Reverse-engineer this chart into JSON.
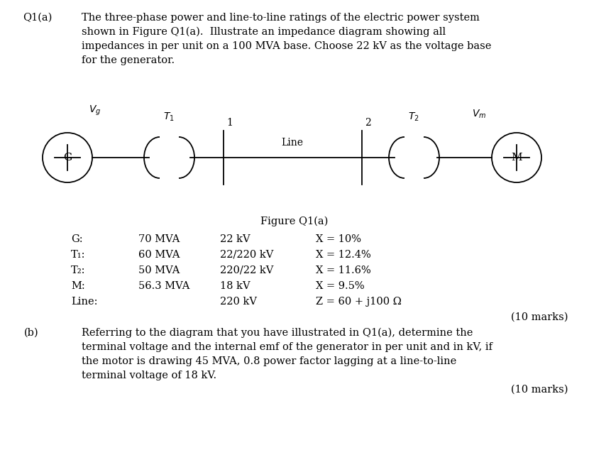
{
  "background_color": "#ffffff",
  "body_fontsize": 10.5,
  "fig_width": 8.3,
  "fig_height": 6.41,
  "q1a_label": "Q1(a)",
  "q1a_text_line1": "The three-phase power and line-to-line ratings of the electric power system",
  "q1a_text_line2": "shown in Figure Q1(a).  Illustrate an impedance diagram showing all",
  "q1a_text_line3": "impedances in per unit on a 100 MVA base. Choose 22 kV as the voltage base",
  "q1a_text_line4": "for the generator.",
  "figure_caption": "Figure Q1(a)",
  "table_col1": [
    "G:",
    "T₁:",
    "T₂:",
    "M:",
    "Line:"
  ],
  "table_col2": [
    "70 MVA",
    "60 MVA",
    "50 MVA",
    "56.3 MVA",
    ""
  ],
  "table_col3": [
    "22 kV",
    "22/220 kV",
    "220/22 kV",
    "18 kV",
    "220 kV"
  ],
  "table_col4": [
    "X = 10%",
    "X = 12.4%",
    "X = 11.6%",
    "X = 9.5%",
    "Z = 60 + j100 Ω"
  ],
  "marks_q1a": "(10 marks)",
  "qb_label": "(b)",
  "qb_text_line1": "Referring to the diagram that you have illustrated in Q1(a), determine the",
  "qb_text_line2": "terminal voltage and the internal emf of the generator in per unit and in kV, if",
  "qb_text_line3": "the motor is drawing 45 MVA, 0.8 power factor lagging at a line-to-line",
  "qb_text_line4": "terminal voltage of 18 kV.",
  "marks_qb": "(10 marks)",
  "text_color": "#000000"
}
